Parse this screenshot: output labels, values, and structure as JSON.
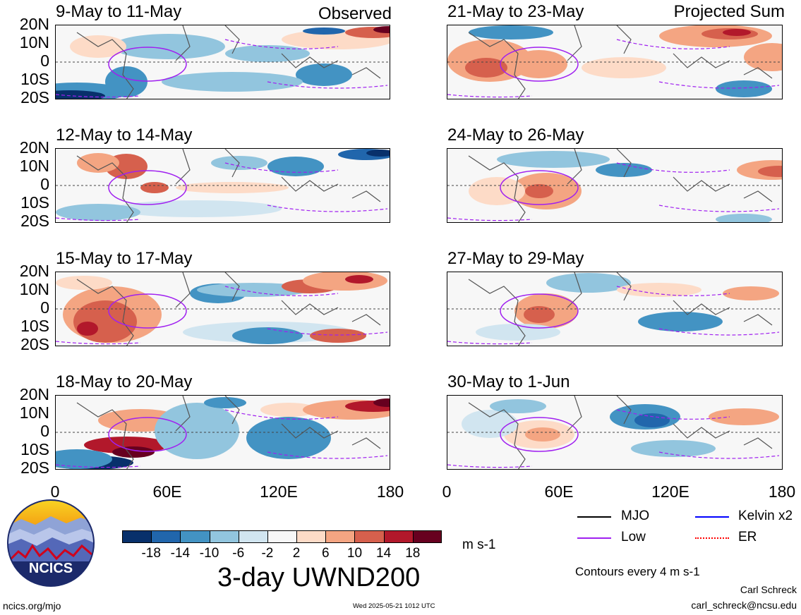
{
  "headers": {
    "left_tag": "Observed",
    "right_tag": "Projected Sum"
  },
  "panels_left": [
    {
      "title": "9-May to 11-May"
    },
    {
      "title": "12-May to 14-May"
    },
    {
      "title": "15-May to 17-May"
    },
    {
      "title": "18-May to 20-May"
    }
  ],
  "panels_right": [
    {
      "title": "21-May to 23-May"
    },
    {
      "title": "24-May to 26-May"
    },
    {
      "title": "27-May to 29-May"
    },
    {
      "title": "30-May to 1-Jun"
    }
  ],
  "lat_labels": [
    "20N",
    "10N",
    "0",
    "10S",
    "20S"
  ],
  "lon_labels": [
    "0",
    "60E",
    "120E",
    "180"
  ],
  "colorbar": {
    "ticks": [
      "-18",
      "-14",
      "-10",
      "-6",
      "-2",
      "2",
      "6",
      "10",
      "14",
      "18"
    ],
    "colors": [
      "#08306b",
      "#2166ac",
      "#4393c3",
      "#92c5de",
      "#d1e5f0",
      "#f7f7f7",
      "#fddbc7",
      "#f4a582",
      "#d6604d",
      "#b2182b",
      "#67001f"
    ],
    "units": "m s-1"
  },
  "main_title": "3-day UWND200",
  "legend": {
    "items": [
      {
        "label": "MJO",
        "color": "#000000",
        "style": "solid"
      },
      {
        "label": "Kelvin x2",
        "color": "#0000ff",
        "style": "solid"
      },
      {
        "label": "Low",
        "color": "#a020f0",
        "style": "solid"
      },
      {
        "label": "ER",
        "color": "#ff0000",
        "style": "dotted"
      }
    ],
    "contours_note": "Contours every 4 m s-1"
  },
  "logo_text": "NCICS",
  "footer": {
    "left": "ncics.org/mjo",
    "center": "Wed 2025-05-21 1012 UTC",
    "author": "Carl Schreck",
    "email": "carl_schreck@ncsu.edu"
  }
}
